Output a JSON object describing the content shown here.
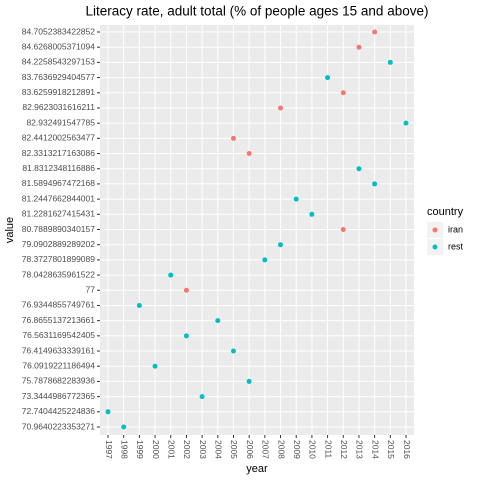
{
  "chart_data": {
    "type": "scatter",
    "title": "Literacy rate, adult total (% of people ages 15 and above)",
    "x_label": "year",
    "y_label": "value",
    "legend_title": "country",
    "xcategories": [
      1997,
      1998,
      1999,
      2000,
      2001,
      2002,
      2003,
      2004,
      2005,
      2006,
      2007,
      2008,
      2009,
      2010,
      2011,
      2012,
      2013,
      2014,
      2015,
      2016
    ],
    "ycategories": [
      84.7052383422852,
      84.6268005371094,
      84.2258543297153,
      83.7636929404577,
      83.6259918212891,
      82.9623031616211,
      82.932491547785,
      82.4412002563477,
      82.3313217163086,
      81.8312348116886,
      81.5894967472168,
      81.2447662844001,
      81.2281627415431,
      80.7889890340157,
      79.0902889289202,
      78.3727801899089,
      78.0428635961522,
      77,
      76.9344855749761,
      76.8655137213661,
      76.5631169542405,
      76.4149633339161,
      76.0919221186494,
      75.7878682283936,
      73.3444986772365,
      72.7404425224836,
      70.9640223353271
    ],
    "series": [
      {
        "name": "iran",
        "color": "#F8766D",
        "x": [
          2014,
          2013,
          2012,
          2008,
          2005,
          2006,
          2012,
          2002
        ],
        "values": [
          84.7052383422852,
          84.6268005371094,
          83.6259918212891,
          82.9623031616211,
          82.4412002563477,
          82.3313217163086,
          80.7889890340157,
          77
        ]
      },
      {
        "name": "rest",
        "color": "#00BFC4",
        "x": [
          2015,
          2011,
          2016,
          2013,
          2014,
          2009,
          2010,
          2008,
          2007,
          2001,
          1999,
          2004,
          2002,
          2005,
          2000,
          2006,
          2003,
          1997,
          1998
        ],
        "values": [
          84.2258543297153,
          83.7636929404577,
          82.932491547785,
          81.8312348116886,
          81.5894967472168,
          81.2447662844001,
          81.2281627415431,
          79.0902889289202,
          78.3727801899089,
          78.0428635961522,
          76.9344855749761,
          76.8655137213661,
          76.5631169542405,
          76.4149633339161,
          76.0919221186494,
          75.7878682283936,
          73.3444986772365,
          72.7404425224836,
          70.9640223353271
        ]
      }
    ],
    "grid": true,
    "legend": "right"
  }
}
